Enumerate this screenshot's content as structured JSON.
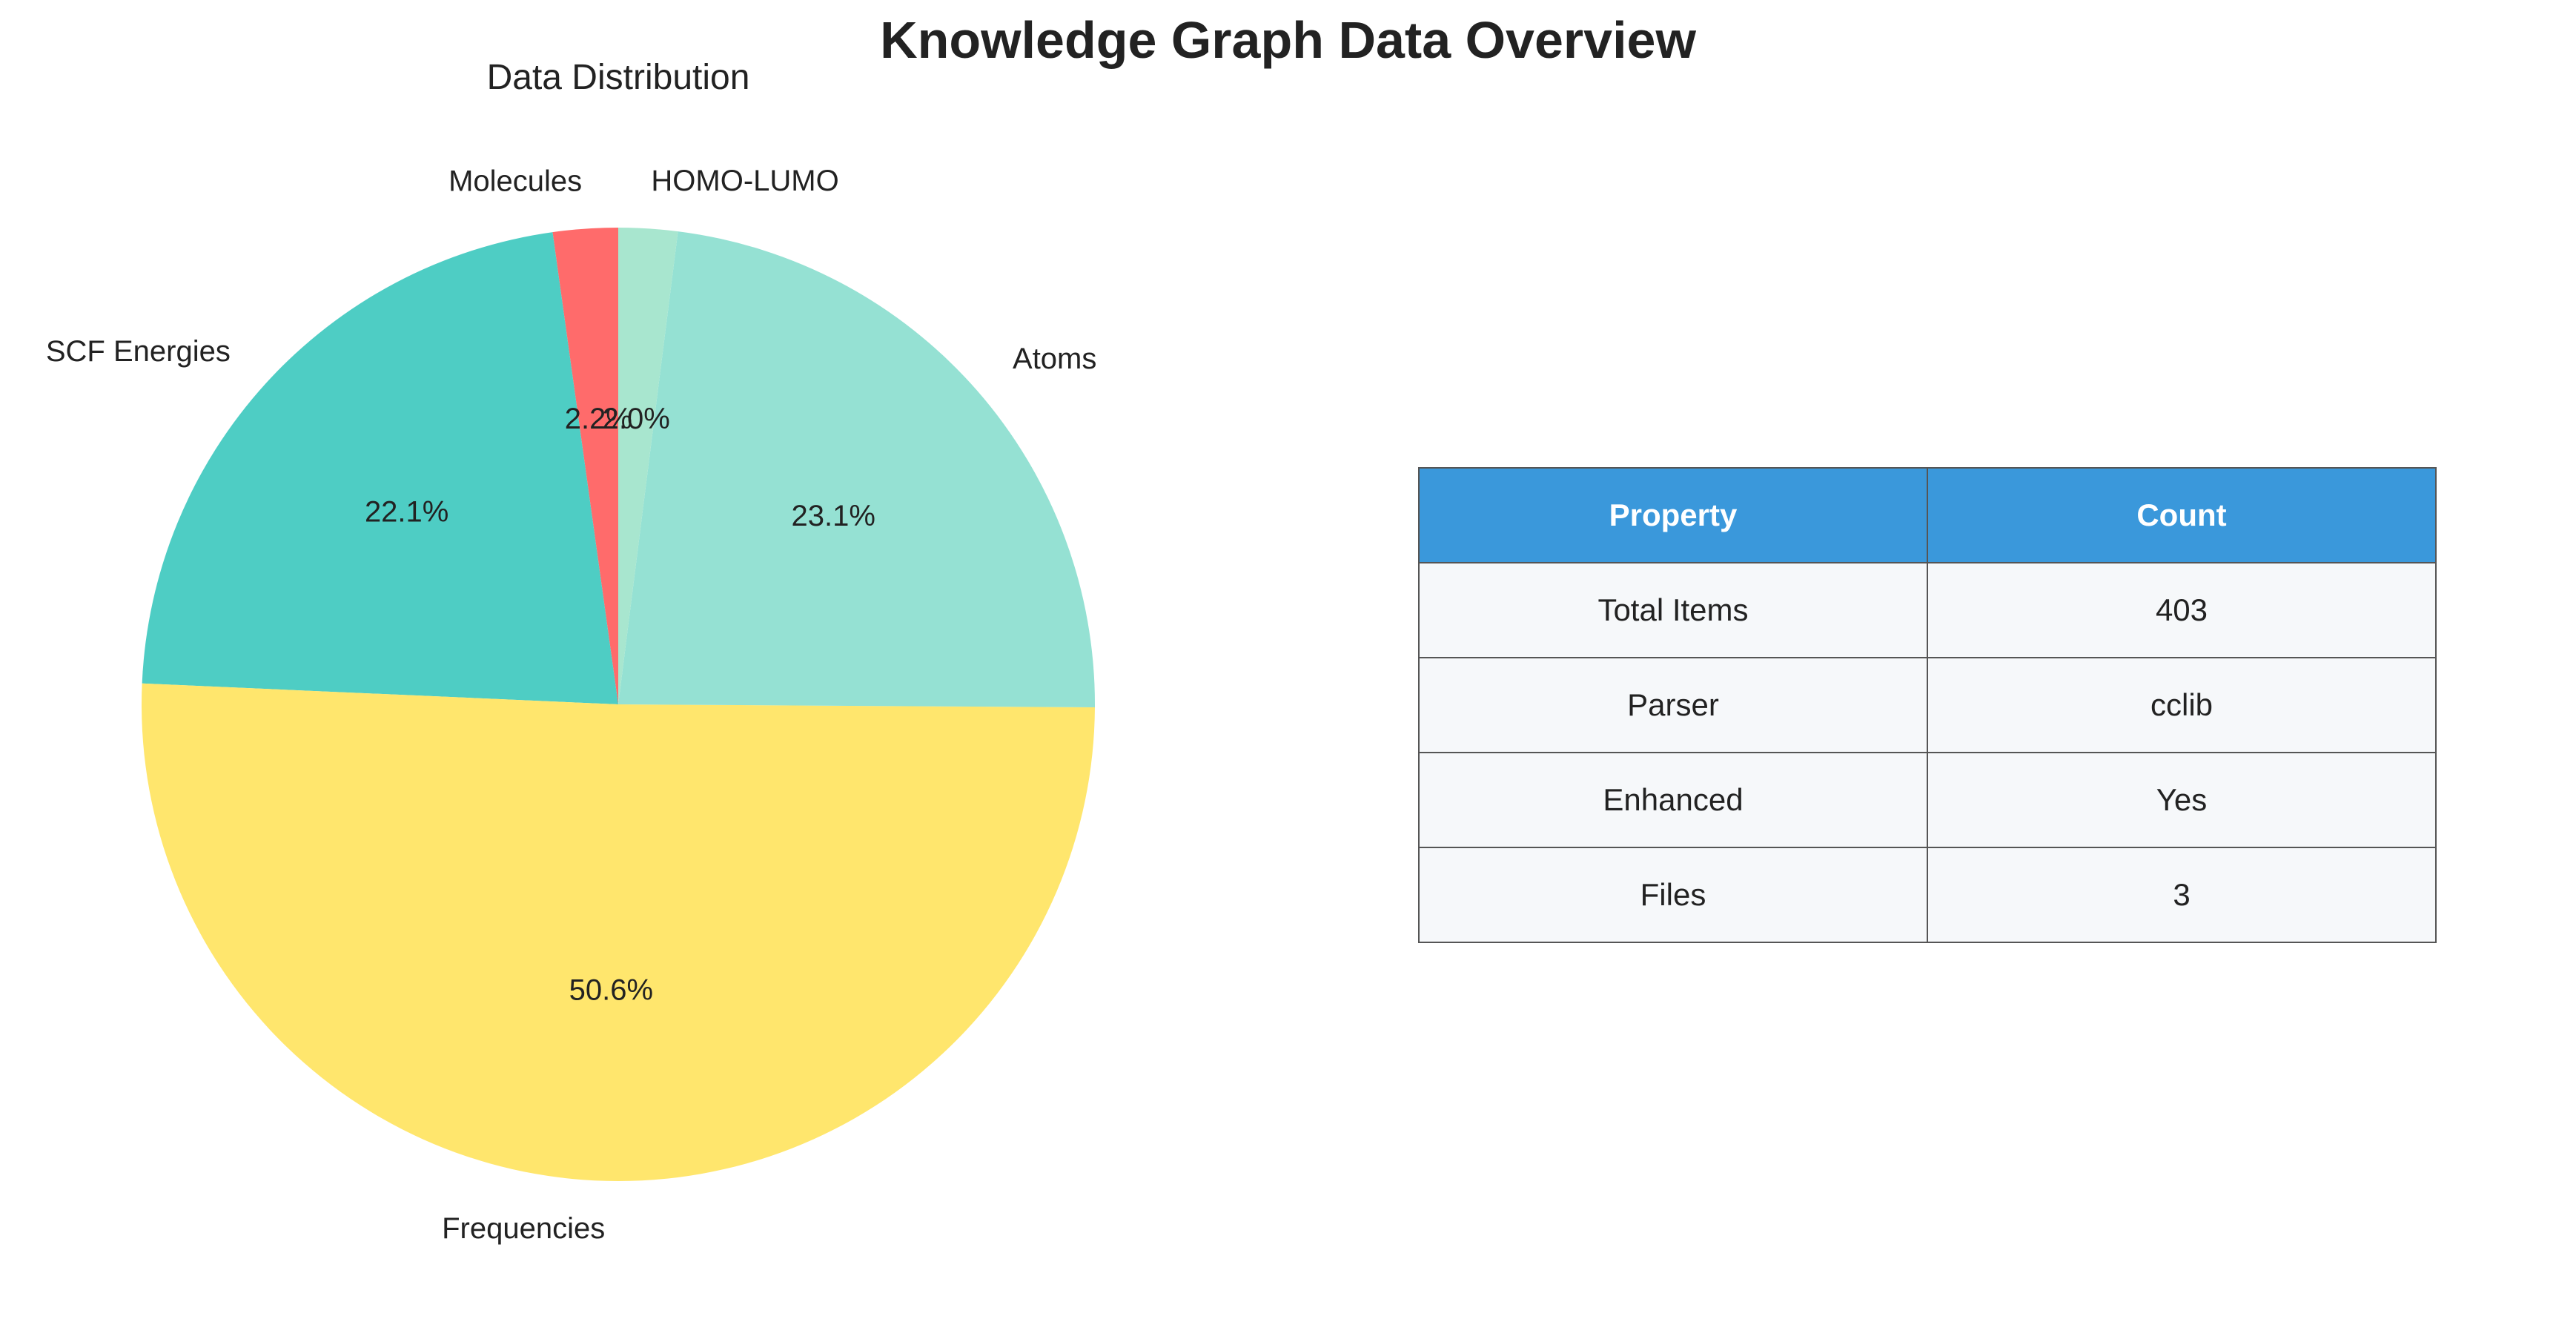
{
  "figure_title": "Knowledge Graph Data Overview",
  "chart_data": [
    {
      "type": "pie",
      "title": "Data Distribution",
      "start_angle_deg": 90,
      "direction": "counterclockwise",
      "slices": [
        {
          "label": "Molecules",
          "value": 2.2,
          "pct_label": "2.2%",
          "color": "#ff6b6b"
        },
        {
          "label": "SCF Energies",
          "value": 22.1,
          "pct_label": "22.1%",
          "color": "#4ecdc4"
        },
        {
          "label": "Frequencies",
          "value": 50.6,
          "pct_label": "50.6%",
          "color": "#ffe66d"
        },
        {
          "label": "Atoms",
          "value": 23.1,
          "pct_label": "23.1%",
          "color": "#95e1d3"
        },
        {
          "label": "HOMO-LUMO",
          "value": 2.0,
          "pct_label": "2.0%",
          "color": "#a8e6cf"
        }
      ]
    },
    {
      "type": "table",
      "columns": [
        "Property",
        "Count"
      ],
      "rows": [
        [
          "Total Items",
          "403"
        ],
        [
          "Parser",
          "cclib"
        ],
        [
          "Enhanced",
          "Yes"
        ],
        [
          "Files",
          "3"
        ]
      ],
      "header_color": "#3a98db",
      "cell_color": "#f6f8fa"
    }
  ]
}
